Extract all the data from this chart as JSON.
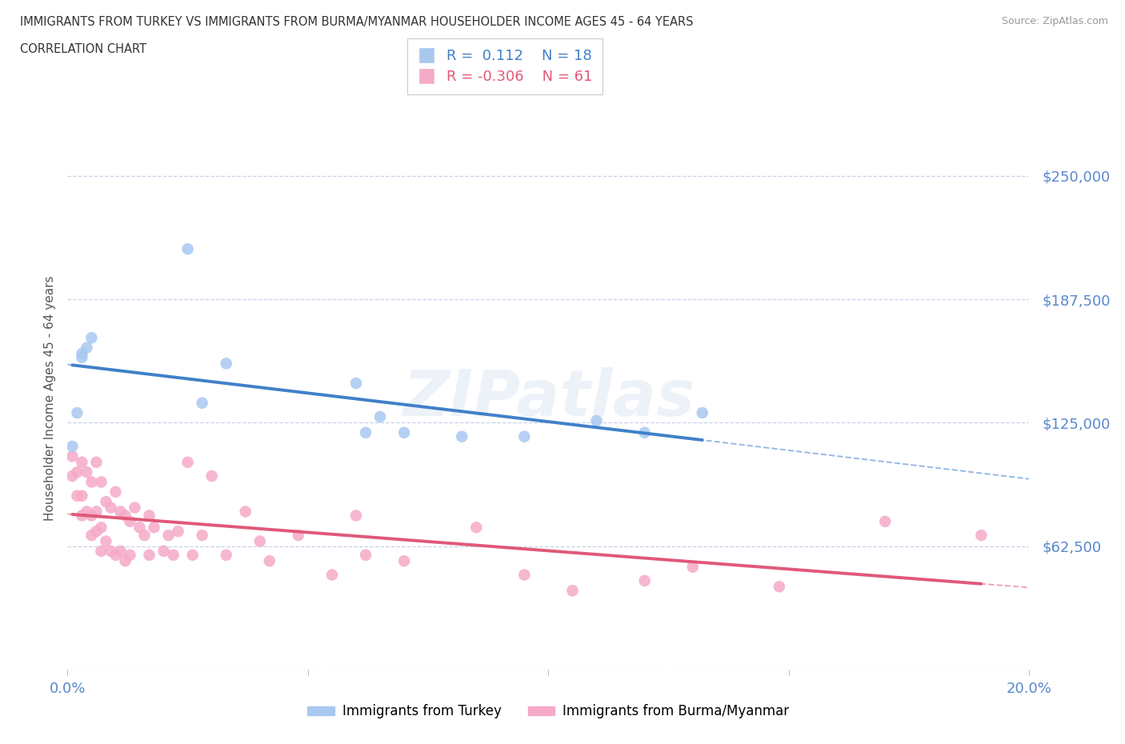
{
  "title_line1": "IMMIGRANTS FROM TURKEY VS IMMIGRANTS FROM BURMA/MYANMAR HOUSEHOLDER INCOME AGES 45 - 64 YEARS",
  "title_line2": "CORRELATION CHART",
  "source_text": "Source: ZipAtlas.com",
  "ylabel": "Householder Income Ages 45 - 64 years",
  "xlim": [
    0.0,
    0.2
  ],
  "ylim": [
    0,
    275000
  ],
  "yticks": [
    0,
    62500,
    125000,
    187500,
    250000
  ],
  "ytick_labels": [
    "",
    "$62,500",
    "$125,000",
    "$187,500",
    "$250,000"
  ],
  "xticks": [
    0.0,
    0.05,
    0.1,
    0.15,
    0.2
  ],
  "xtick_labels": [
    "0.0%",
    "",
    "",
    "",
    "20.0%"
  ],
  "watermark": "ZIPatlas",
  "legend_turkey_r": "0.112",
  "legend_turkey_n": "18",
  "legend_burma_r": "-0.306",
  "legend_burma_n": "61",
  "color_turkey": "#a8c8f0",
  "color_burma": "#f5aac8",
  "color_line_turkey": "#4080c8",
  "color_line_burma": "#e05878",
  "color_ytick_labels": "#5888cc",
  "color_xtick_labels": "#5888cc",
  "color_grid": "#c8d4e8",
  "turkey_x": [
    0.001,
    0.002,
    0.003,
    0.003,
    0.004,
    0.005,
    0.025,
    0.028,
    0.033,
    0.06,
    0.062,
    0.065,
    0.07,
    0.082,
    0.095,
    0.11,
    0.12,
    0.132
  ],
  "turkey_y": [
    113000,
    130000,
    160000,
    158000,
    163000,
    168000,
    213000,
    135000,
    155000,
    145000,
    120000,
    128000,
    120000,
    118000,
    118000,
    126000,
    120000,
    130000
  ],
  "burma_x": [
    0.001,
    0.001,
    0.002,
    0.002,
    0.003,
    0.003,
    0.003,
    0.004,
    0.004,
    0.005,
    0.005,
    0.005,
    0.006,
    0.006,
    0.006,
    0.007,
    0.007,
    0.007,
    0.008,
    0.008,
    0.009,
    0.009,
    0.01,
    0.01,
    0.011,
    0.011,
    0.012,
    0.012,
    0.013,
    0.013,
    0.014,
    0.015,
    0.016,
    0.017,
    0.017,
    0.018,
    0.02,
    0.021,
    0.022,
    0.023,
    0.025,
    0.026,
    0.028,
    0.03,
    0.033,
    0.037,
    0.04,
    0.042,
    0.048,
    0.055,
    0.06,
    0.062,
    0.07,
    0.085,
    0.095,
    0.105,
    0.12,
    0.13,
    0.148,
    0.17,
    0.19
  ],
  "burma_y": [
    108000,
    98000,
    100000,
    88000,
    105000,
    88000,
    78000,
    100000,
    80000,
    95000,
    78000,
    68000,
    105000,
    80000,
    70000,
    95000,
    72000,
    60000,
    85000,
    65000,
    82000,
    60000,
    90000,
    58000,
    80000,
    60000,
    78000,
    55000,
    75000,
    58000,
    82000,
    72000,
    68000,
    78000,
    58000,
    72000,
    60000,
    68000,
    58000,
    70000,
    105000,
    58000,
    68000,
    98000,
    58000,
    80000,
    65000,
    55000,
    68000,
    48000,
    78000,
    58000,
    55000,
    72000,
    48000,
    40000,
    45000,
    52000,
    42000,
    75000,
    68000
  ]
}
